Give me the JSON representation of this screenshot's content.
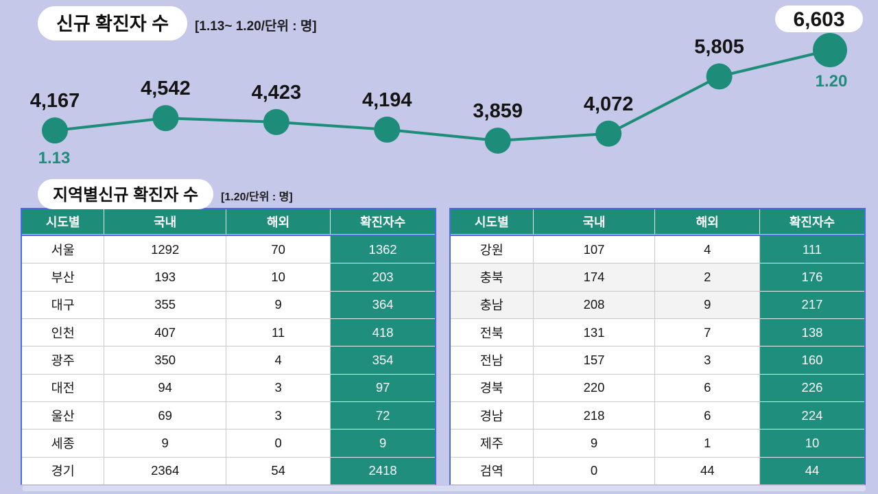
{
  "page": {
    "background_color": "#c5c8e9",
    "accent_teal": "#1d8c79",
    "accent_blue": "#4c6ae0"
  },
  "chart_data": [
    {
      "type": "line",
      "title": "신규 확진자 수",
      "subtitle": "[1.13~ 1.20/단위 : 명]",
      "values": [
        4167,
        4542,
        4423,
        4194,
        3859,
        4072,
        5805,
        6603
      ],
      "labels": [
        "4,167",
        "4,542",
        "4,423",
        "4,194",
        "3,859",
        "4,072",
        "5,805",
        "6,603"
      ],
      "first_x_label": "1.13",
      "last_x_label": "1.20",
      "highlight_last_value": "6,603",
      "line_color": "#1d8c79",
      "dot_color": "#1d8c79",
      "label_color": "#141414",
      "date_label_color": "#1d8c79",
      "ylim": [
        3859,
        6603
      ],
      "grid": false,
      "legend": false
    },
    {
      "type": "table",
      "title": "지역별신규 확진자 수",
      "subtitle": "[1.20/단위 : 명]",
      "columns": [
        "시도별",
        "국내",
        "해외",
        "확진자수"
      ],
      "rows": [
        [
          "서울",
          "1292",
          "70",
          "1362"
        ],
        [
          "부산",
          "193",
          "10",
          "203"
        ],
        [
          "대구",
          "355",
          "9",
          "364"
        ],
        [
          "인천",
          "407",
          "11",
          "418"
        ],
        [
          "광주",
          "350",
          "4",
          "354"
        ],
        [
          "대전",
          "94",
          "3",
          "97"
        ],
        [
          "울산",
          "69",
          "3",
          "72"
        ],
        [
          "세종",
          "9",
          "0",
          "9"
        ],
        [
          "경기",
          "2364",
          "54",
          "2418"
        ]
      ],
      "shaded_rows": []
    },
    {
      "type": "table",
      "title": "지역별신규 확진자 수",
      "subtitle": "[1.20/단위 : 명]",
      "columns": [
        "시도별",
        "국내",
        "해외",
        "확진자수"
      ],
      "rows": [
        [
          "강원",
          "107",
          "4",
          "111"
        ],
        [
          "충북",
          "174",
          "2",
          "176"
        ],
        [
          "충남",
          "208",
          "9",
          "217"
        ],
        [
          "전북",
          "131",
          "7",
          "138"
        ],
        [
          "전남",
          "157",
          "3",
          "160"
        ],
        [
          "경북",
          "220",
          "6",
          "226"
        ],
        [
          "경남",
          "218",
          "6",
          "224"
        ],
        [
          "제주",
          "9",
          "1",
          "10"
        ],
        [
          "검역",
          "0",
          "44",
          "44"
        ]
      ],
      "shaded_rows": [
        1,
        2
      ]
    }
  ]
}
